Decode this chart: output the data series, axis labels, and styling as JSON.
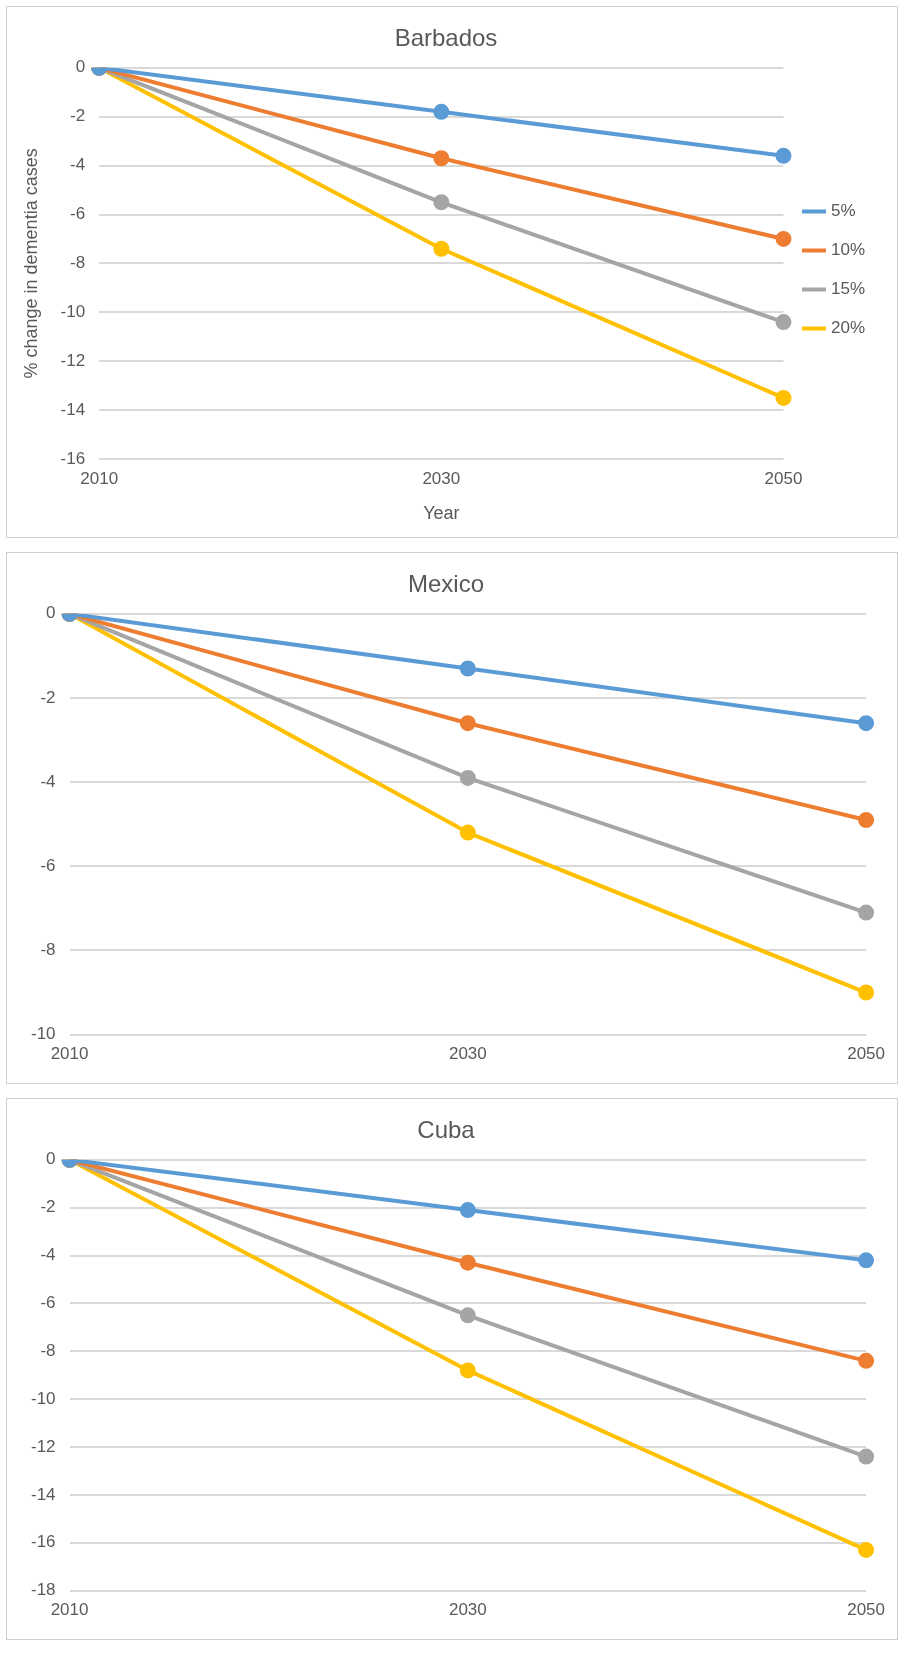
{
  "chart_data": [
    {
      "type": "line",
      "title": "Barbados",
      "xlabel": "Year",
      "ylabel": "% change in dementia cases",
      "categories": [
        "2010",
        "2030",
        "2050"
      ],
      "ylim": [
        -16,
        0
      ],
      "yticks": [
        -16,
        -14,
        -12,
        -10,
        -8,
        -6,
        -4,
        -2,
        0
      ],
      "grid": "y",
      "legend": "right",
      "marker": "circle",
      "line_style": "solid",
      "series": [
        {
          "name": "5%",
          "color": "#5b9bd5",
          "values": [
            0,
            -1.8,
            -3.6
          ]
        },
        {
          "name": "10%",
          "color": "#ed7d31",
          "values": [
            0,
            -3.7,
            -7.0
          ]
        },
        {
          "name": "15%",
          "color": "#a5a5a5",
          "values": [
            0,
            -5.5,
            -10.4
          ]
        },
        {
          "name": "20%",
          "color": "#ffc000",
          "values": [
            0,
            -7.4,
            -13.5
          ]
        }
      ]
    },
    {
      "type": "line",
      "title": "Mexico",
      "categories": [
        "2010",
        "2030",
        "2050"
      ],
      "ylim": [
        -10,
        0
      ],
      "yticks": [
        -10,
        -8,
        -6,
        -4,
        -2,
        0
      ],
      "grid": "y",
      "legend": false,
      "marker": "circle",
      "line_style": "solid",
      "series": [
        {
          "color": "#5b9bd5",
          "values": [
            0,
            -1.3,
            -2.6
          ]
        },
        {
          "color": "#ed7d31",
          "values": [
            0,
            -2.6,
            -4.9
          ]
        },
        {
          "color": "#a5a5a5",
          "values": [
            0,
            -3.9,
            -7.1
          ]
        },
        {
          "color": "#ffc000",
          "values": [
            0,
            -5.2,
            -9.0
          ]
        }
      ]
    },
    {
      "type": "line",
      "title": "Cuba",
      "categories": [
        "2010",
        "2030",
        "2050"
      ],
      "ylim": [
        -18,
        0
      ],
      "yticks": [
        -18,
        -16,
        -14,
        -12,
        -10,
        -8,
        -6,
        -4,
        -2,
        0
      ],
      "grid": "y",
      "legend": false,
      "marker": "circle",
      "line_style": "solid",
      "series": [
        {
          "color": "#5b9bd5",
          "values": [
            0,
            -2.1,
            -4.2
          ]
        },
        {
          "color": "#ed7d31",
          "values": [
            0,
            -4.3,
            -8.4
          ]
        },
        {
          "color": "#a5a5a5",
          "values": [
            0,
            -6.5,
            -12.4
          ]
        },
        {
          "color": "#ffc000",
          "values": [
            0,
            -8.8,
            -16.3
          ]
        }
      ]
    }
  ]
}
